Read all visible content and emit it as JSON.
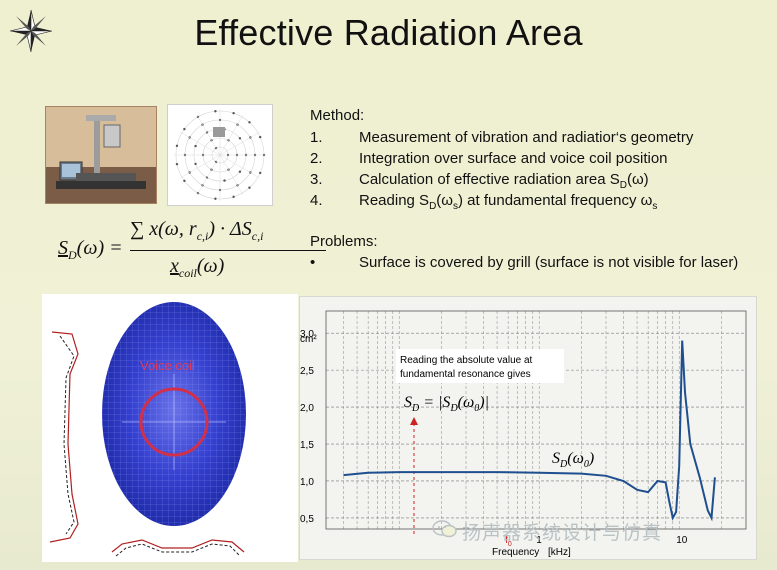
{
  "title": "Effective Radiation Area",
  "formula": {
    "lhs": "S",
    "lhs_sub": "D",
    "lhs_arg": "(ω) =",
    "numerator": "∑ x(ω, r",
    "numerator_sub": "c,i",
    "numerator_tail": ") · ΔS",
    "numerator_tail_sub": "c,i",
    "denominator": "x",
    "denominator_sub": "coil",
    "denominator_tail": "(ω)"
  },
  "method": {
    "header": "Method:",
    "items": [
      {
        "num": "1.",
        "text": "Measurement of vibration and radiatior‘s geometry"
      },
      {
        "num": "2.",
        "text": "Integration over surface and voice coil position"
      },
      {
        "num": "3.",
        "text_pre": "Calculation of effective radiation area S",
        "sub": "D",
        "text_post": "(ω)"
      },
      {
        "num": "4.",
        "text_pre": "Reading S",
        "sub": "D",
        "text_mid": "(ω",
        "sub2": "s",
        "text_post": ") at fundamental frequency ω",
        "sub3": "s"
      }
    ]
  },
  "problems": {
    "header": "Problems:",
    "bullet": "•",
    "item": "Surface is covered by grill (surface is not visible for laser)"
  },
  "left_figure": {
    "label": "Voice coil",
    "colors": {
      "cone": "#2a35c8",
      "coil": "#d0304a",
      "label": "#e23a5a"
    }
  },
  "chart": {
    "y_unit": "cm²",
    "y_ticks": [
      "3,0",
      "2,5",
      "2,0",
      "1,5",
      "1,0",
      "0,5"
    ],
    "x_ticks": [
      "f",
      "1",
      "10"
    ],
    "x_tick_f_sub": "0",
    "x_label": "Frequency",
    "x_unit": "[kHz]",
    "note_line1": "Reading the absolute value at",
    "note_line2": "fundamental resonance gives",
    "eq1": "S",
    "eq1_sub": "D",
    "eq1_rest": " = |S",
    "eq1_sub2": "D",
    "eq1_tail": "(ω",
    "eq1_sub3": "0",
    "eq1_end": ")|",
    "curve_label": "S",
    "curve_label_sub": "D",
    "curve_label_tail": "(ω",
    "curve_label_sub2": "0",
    "curve_label_end": ")",
    "line_color": "#1f4f8f",
    "marker_color": "#cc2222"
  },
  "chart_data": {
    "type": "line",
    "ylabel": "cm²",
    "xlabel": "Frequency [kHz]",
    "x_scale": "log",
    "ylim": [
      0.35,
      3.3
    ],
    "grid": true,
    "series": [
      {
        "name": "S_D(ω0)",
        "x": [
          0.04,
          0.06,
          0.1,
          0.2,
          0.5,
          1.0,
          2.0,
          3.0,
          4.0,
          5.0,
          6.0,
          7.0,
          8.0,
          8.5,
          9.0,
          9.5,
          10.0,
          10.5,
          11.0,
          12.0,
          14.0,
          16.0,
          17.0,
          18.0
        ],
        "y": [
          1.08,
          1.11,
          1.12,
          1.12,
          1.12,
          1.11,
          1.1,
          1.07,
          1.0,
          0.88,
          0.85,
          1.0,
          0.98,
          0.72,
          0.5,
          0.58,
          1.2,
          2.9,
          2.2,
          1.5,
          1.05,
          0.6,
          0.5,
          1.05
        ]
      }
    ]
  },
  "watermark": "扬声器系统设计与仿真"
}
